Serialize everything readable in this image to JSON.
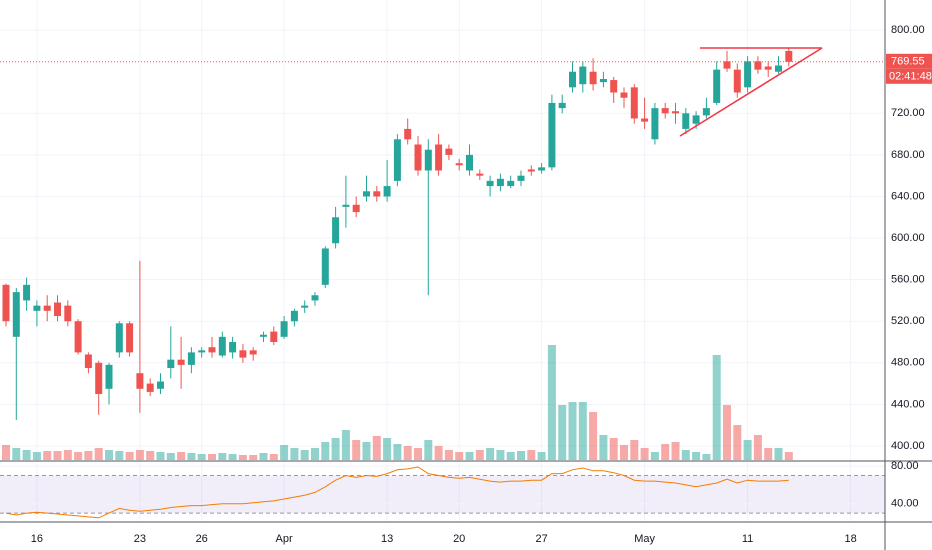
{
  "chart_data": {
    "type": "candlestick",
    "up_color": "#26a69a",
    "down_color": "#ef5350",
    "ylim": [
      386.5,
      829
    ],
    "yticks": [
      {
        "value": 400,
        "label": "400.00"
      },
      {
        "value": 440,
        "label": "440.00"
      },
      {
        "value": 480,
        "label": "480.00"
      },
      {
        "value": 520,
        "label": "520.00"
      },
      {
        "value": 560,
        "label": "560.00"
      },
      {
        "value": 600,
        "label": "600.00"
      },
      {
        "value": 640,
        "label": "640.00"
      },
      {
        "value": 680,
        "label": "680.00"
      },
      {
        "value": 720,
        "label": "720.00"
      },
      {
        "value": 800,
        "label": "800.00"
      }
    ],
    "xticks": [
      {
        "value": 3,
        "label": "16"
      },
      {
        "value": 13,
        "label": "23"
      },
      {
        "value": 19,
        "label": "26"
      },
      {
        "value": 27,
        "label": "Apr"
      },
      {
        "value": 37,
        "label": "13"
      },
      {
        "value": 44,
        "label": "20"
      },
      {
        "value": 52,
        "label": "27"
      },
      {
        "value": 62,
        "label": "May"
      },
      {
        "value": 72,
        "label": "11"
      },
      {
        "value": 82,
        "label": "18"
      }
    ],
    "grid": true,
    "open": [
      555,
      505,
      540,
      530,
      535,
      538,
      535,
      520,
      488,
      480,
      455,
      490,
      518,
      470,
      460,
      455,
      475,
      483,
      478,
      490,
      495,
      487,
      490,
      492,
      492,
      505,
      510,
      505,
      520,
      533,
      540,
      555,
      595,
      630,
      632,
      640,
      645,
      640,
      655,
      705,
      690,
      665,
      690,
      686,
      672,
      665,
      662,
      650,
      650,
      650,
      655,
      666,
      665,
      668,
      725,
      745,
      748,
      760,
      750,
      752,
      740,
      745,
      715,
      695,
      725,
      722,
      705,
      710,
      718,
      730,
      770,
      762,
      745,
      770,
      765,
      760,
      780
    ],
    "high": [
      556,
      552,
      562,
      540,
      545,
      545,
      540,
      522,
      490,
      482,
      480,
      520,
      520,
      578,
      465,
      470,
      515,
      505,
      495,
      495,
      505,
      510,
      505,
      498,
      495,
      510,
      515,
      525,
      532,
      540,
      548,
      592,
      630,
      660,
      640,
      660,
      650,
      675,
      700,
      715,
      698,
      695,
      700,
      690,
      676,
      690,
      666,
      660,
      662,
      660,
      665,
      670,
      672,
      738,
      738,
      770,
      770,
      773,
      760,
      755,
      745,
      748,
      735,
      730,
      730,
      730,
      725,
      722,
      735,
      770,
      780,
      768,
      775,
      775,
      770,
      775,
      783
    ],
    "low": [
      515,
      425,
      530,
      515,
      520,
      520,
      515,
      488,
      470,
      430,
      440,
      485,
      486,
      432,
      448,
      450,
      465,
      455,
      470,
      485,
      485,
      485,
      484,
      480,
      482,
      500,
      497,
      503,
      515,
      528,
      535,
      552,
      590,
      610,
      620,
      635,
      635,
      635,
      650,
      690,
      660,
      545,
      660,
      675,
      665,
      660,
      656,
      640,
      645,
      648,
      650,
      660,
      662,
      665,
      720,
      740,
      740,
      742,
      745,
      730,
      725,
      710,
      705,
      690,
      715,
      710,
      700,
      705,
      715,
      728,
      760,
      735,
      740,
      758,
      755,
      758,
      765
    ],
    "close": [
      520,
      548,
      555,
      535,
      530,
      525,
      520,
      490,
      475,
      450,
      478,
      518,
      490,
      455,
      452,
      462,
      483,
      478,
      490,
      492,
      490,
      505,
      500,
      485,
      488,
      507,
      500,
      520,
      530,
      535,
      545,
      590,
      620,
      632,
      625,
      645,
      640,
      650,
      695,
      695,
      665,
      685,
      665,
      680,
      670,
      680,
      660,
      655,
      657,
      655,
      660,
      664,
      668,
      730,
      730,
      760,
      765,
      748,
      753,
      740,
      735,
      715,
      712,
      725,
      720,
      720,
      720,
      718,
      725,
      762,
      763,
      740,
      770,
      762,
      762,
      766,
      769.55
    ],
    "volume": [
      15,
      12,
      10,
      8,
      9,
      9,
      10,
      8,
      9,
      12,
      10,
      9,
      8,
      10,
      9,
      8,
      7,
      8,
      7,
      6,
      6,
      7,
      6,
      5,
      5,
      7,
      6,
      15,
      12,
      10,
      12,
      18,
      22,
      30,
      20,
      18,
      24,
      22,
      16,
      14,
      12,
      20,
      14,
      10,
      8,
      8,
      10,
      12,
      10,
      8,
      9,
      10,
      8,
      115,
      55,
      58,
      58,
      48,
      25,
      22,
      15,
      20,
      12,
      8,
      16,
      18,
      10,
      8,
      6,
      105,
      55,
      35,
      20,
      25,
      12,
      12,
      8
    ],
    "last_price": {
      "value": 769.55,
      "label": "769.55"
    },
    "countdown": "02:41:48",
    "rsi": {
      "color": "#f57c00",
      "ylim": [
        21.6,
        85.4
      ],
      "yticks": [
        {
          "value": 80,
          "label": "80.00"
        },
        {
          "value": 40,
          "label": "40.00"
        }
      ],
      "bands": [
        30,
        70
      ],
      "values": [
        30,
        28,
        30,
        31,
        30,
        29,
        28,
        27,
        26,
        25,
        30,
        35,
        33,
        32,
        33,
        34,
        36,
        37,
        38,
        38,
        39,
        40,
        40,
        40,
        41,
        42,
        43,
        45,
        47,
        49,
        52,
        58,
        65,
        70,
        68,
        70,
        69,
        72,
        76,
        77,
        79,
        72,
        70,
        68,
        67,
        68,
        66,
        64,
        63,
        64,
        64,
        65,
        65,
        72,
        72,
        76,
        78,
        75,
        75,
        73,
        70,
        65,
        64,
        64,
        63,
        62,
        60,
        58,
        60,
        62,
        66,
        62,
        65,
        64,
        64,
        64,
        65
      ]
    }
  }
}
